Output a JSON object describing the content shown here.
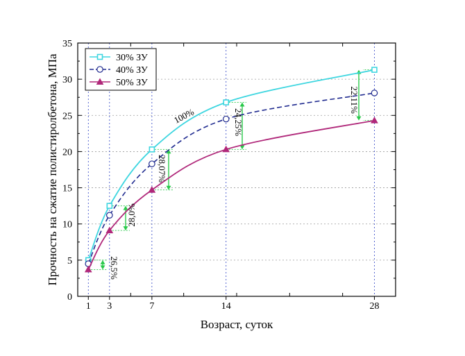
{
  "chart_data": {
    "type": "line",
    "title": "",
    "xlabel": "Возраст, суток",
    "ylabel": "Прочность на сжатие полистиролбетона, МПа",
    "xlim": [
      0,
      30
    ],
    "ylim": [
      0,
      35
    ],
    "x_ticks": [
      1,
      3,
      7,
      14,
      28
    ],
    "y_ticks": [
      0,
      5,
      10,
      15,
      20,
      25,
      30,
      35
    ],
    "grid": true,
    "legend_position": "top-left",
    "series": [
      {
        "name": "30% ЗУ",
        "color": "#3ed6e0",
        "marker": "square",
        "dash": "solid",
        "x": [
          1,
          3,
          7,
          14,
          28
        ],
        "values": [
          5.0,
          12.5,
          20.3,
          26.8,
          31.3
        ]
      },
      {
        "name": "40% ЗУ",
        "color": "#1f2a8f",
        "marker": "circle",
        "dash": "dashed",
        "x": [
          1,
          3,
          7,
          14,
          28
        ],
        "values": [
          4.5,
          11.2,
          18.3,
          24.5,
          28.1
        ]
      },
      {
        "name": "50% ЗУ",
        "color": "#b0287a",
        "marker": "triangle",
        "dash": "solid",
        "x": [
          1,
          3,
          7,
          14,
          28
        ],
        "values": [
          3.7,
          9.1,
          14.7,
          20.3,
          24.3
        ]
      }
    ],
    "annotations": [
      {
        "text": "26,5%",
        "x": 1,
        "from": 3.7,
        "to": 5.0
      },
      {
        "text": "28,0%",
        "x": 3,
        "from": 9.1,
        "to": 12.5
      },
      {
        "text": "28,07%",
        "x": 7,
        "from": 14.7,
        "to": 20.3
      },
      {
        "text": "24,25%",
        "x": 14,
        "from": 20.3,
        "to": 26.8
      },
      {
        "text": "22,11%",
        "x": 28,
        "from": 24.3,
        "to": 31.3
      },
      {
        "text": "100%",
        "x": 9,
        "y": 23.5
      }
    ]
  }
}
